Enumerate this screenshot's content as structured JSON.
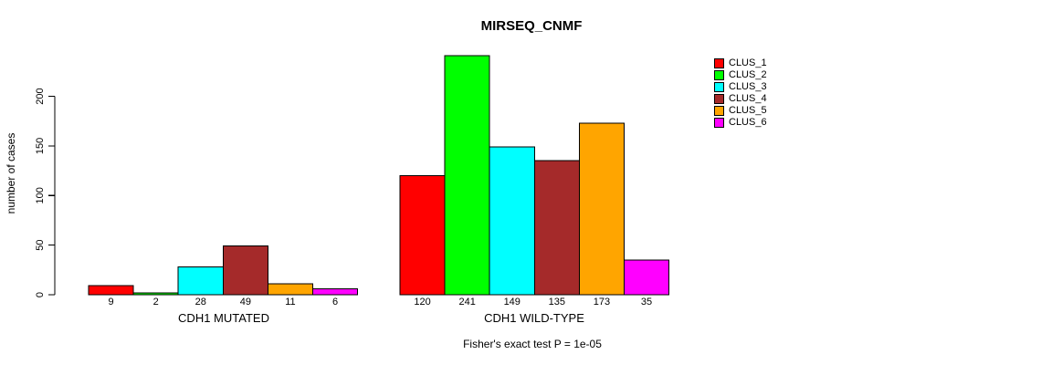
{
  "page": {
    "background": "#ffffff"
  },
  "chart_data": {
    "type": "bar",
    "title": "MIRSEQ_CNMF",
    "ylabel": "number of cases",
    "annotation": "Fisher's exact test P = 1e-05",
    "categories": [
      "CDH1 MUTATED",
      "CDH1 WILD-TYPE"
    ],
    "series": [
      {
        "name": "CLUS_1",
        "color": "#ff0000",
        "values": [
          9,
          120
        ]
      },
      {
        "name": "CLUS_2",
        "color": "#00ff00",
        "values": [
          2,
          241
        ]
      },
      {
        "name": "CLUS_3",
        "color": "#00ffff",
        "values": [
          28,
          149
        ]
      },
      {
        "name": "CLUS_4",
        "color": "#a52a2a",
        "values": [
          49,
          135
        ]
      },
      {
        "name": "CLUS_5",
        "color": "#ffa500",
        "values": [
          11,
          173
        ]
      },
      {
        "name": "CLUS_6",
        "color": "#ff00ff",
        "values": [
          6,
          35
        ]
      }
    ],
    "yticks": [
      0,
      50,
      100,
      150,
      200
    ],
    "ylim": [
      0,
      245
    ],
    "grid": false,
    "legend_position": "top-right",
    "bar_value_labels_shown": true,
    "axis_color": "#000000",
    "text_color": "#000000"
  }
}
